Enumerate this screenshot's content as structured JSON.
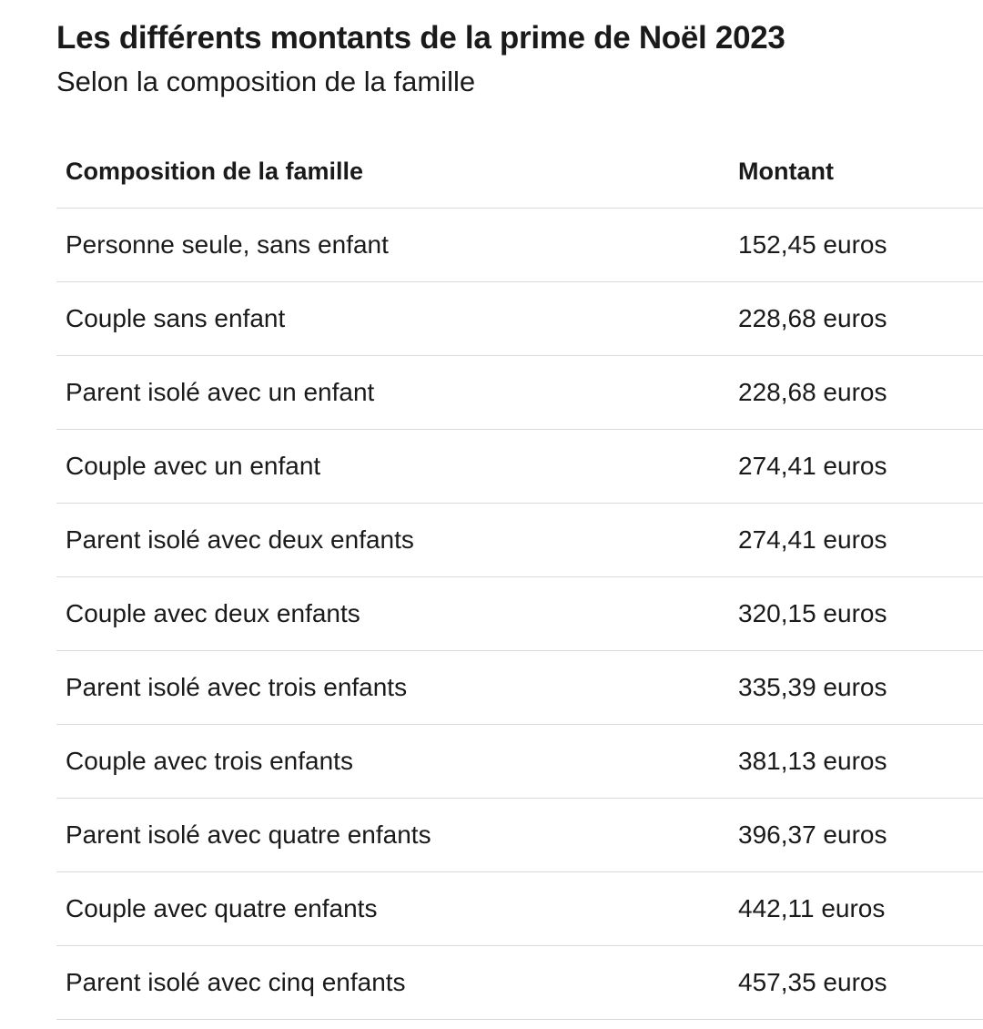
{
  "chart_data": {
    "type": "table",
    "title": "Les différents montants de la prime de Noël 2023",
    "subtitle": "Selon la composition de la famille",
    "columns": [
      "Composition de la famille",
      "Montant"
    ],
    "rows": [
      [
        "Personne seule, sans enfant",
        "152,45 euros"
      ],
      [
        "Couple sans enfant",
        "228,68 euros"
      ],
      [
        "Parent isolé avec un enfant",
        "228,68 euros"
      ],
      [
        "Couple avec un enfant",
        "274,41 euros"
      ],
      [
        "Parent isolé avec deux enfants",
        "274,41 euros"
      ],
      [
        "Couple avec deux enfants",
        "320,15 euros"
      ],
      [
        "Parent isolé avec trois enfants",
        "335,39 euros"
      ],
      [
        "Couple avec trois enfants",
        "381,13 euros"
      ],
      [
        "Parent isolé avec quatre enfants",
        "396,37 euros"
      ],
      [
        "Couple avec quatre enfants",
        "442,11 euros"
      ],
      [
        "Parent isolé avec cinq enfants",
        "457,35 euros"
      ]
    ],
    "values": [
      152.45,
      228.68,
      228.68,
      274.41,
      274.41,
      320.15,
      335.39,
      381.13,
      396.37,
      442.11,
      457.35
    ],
    "unit": "euros"
  }
}
